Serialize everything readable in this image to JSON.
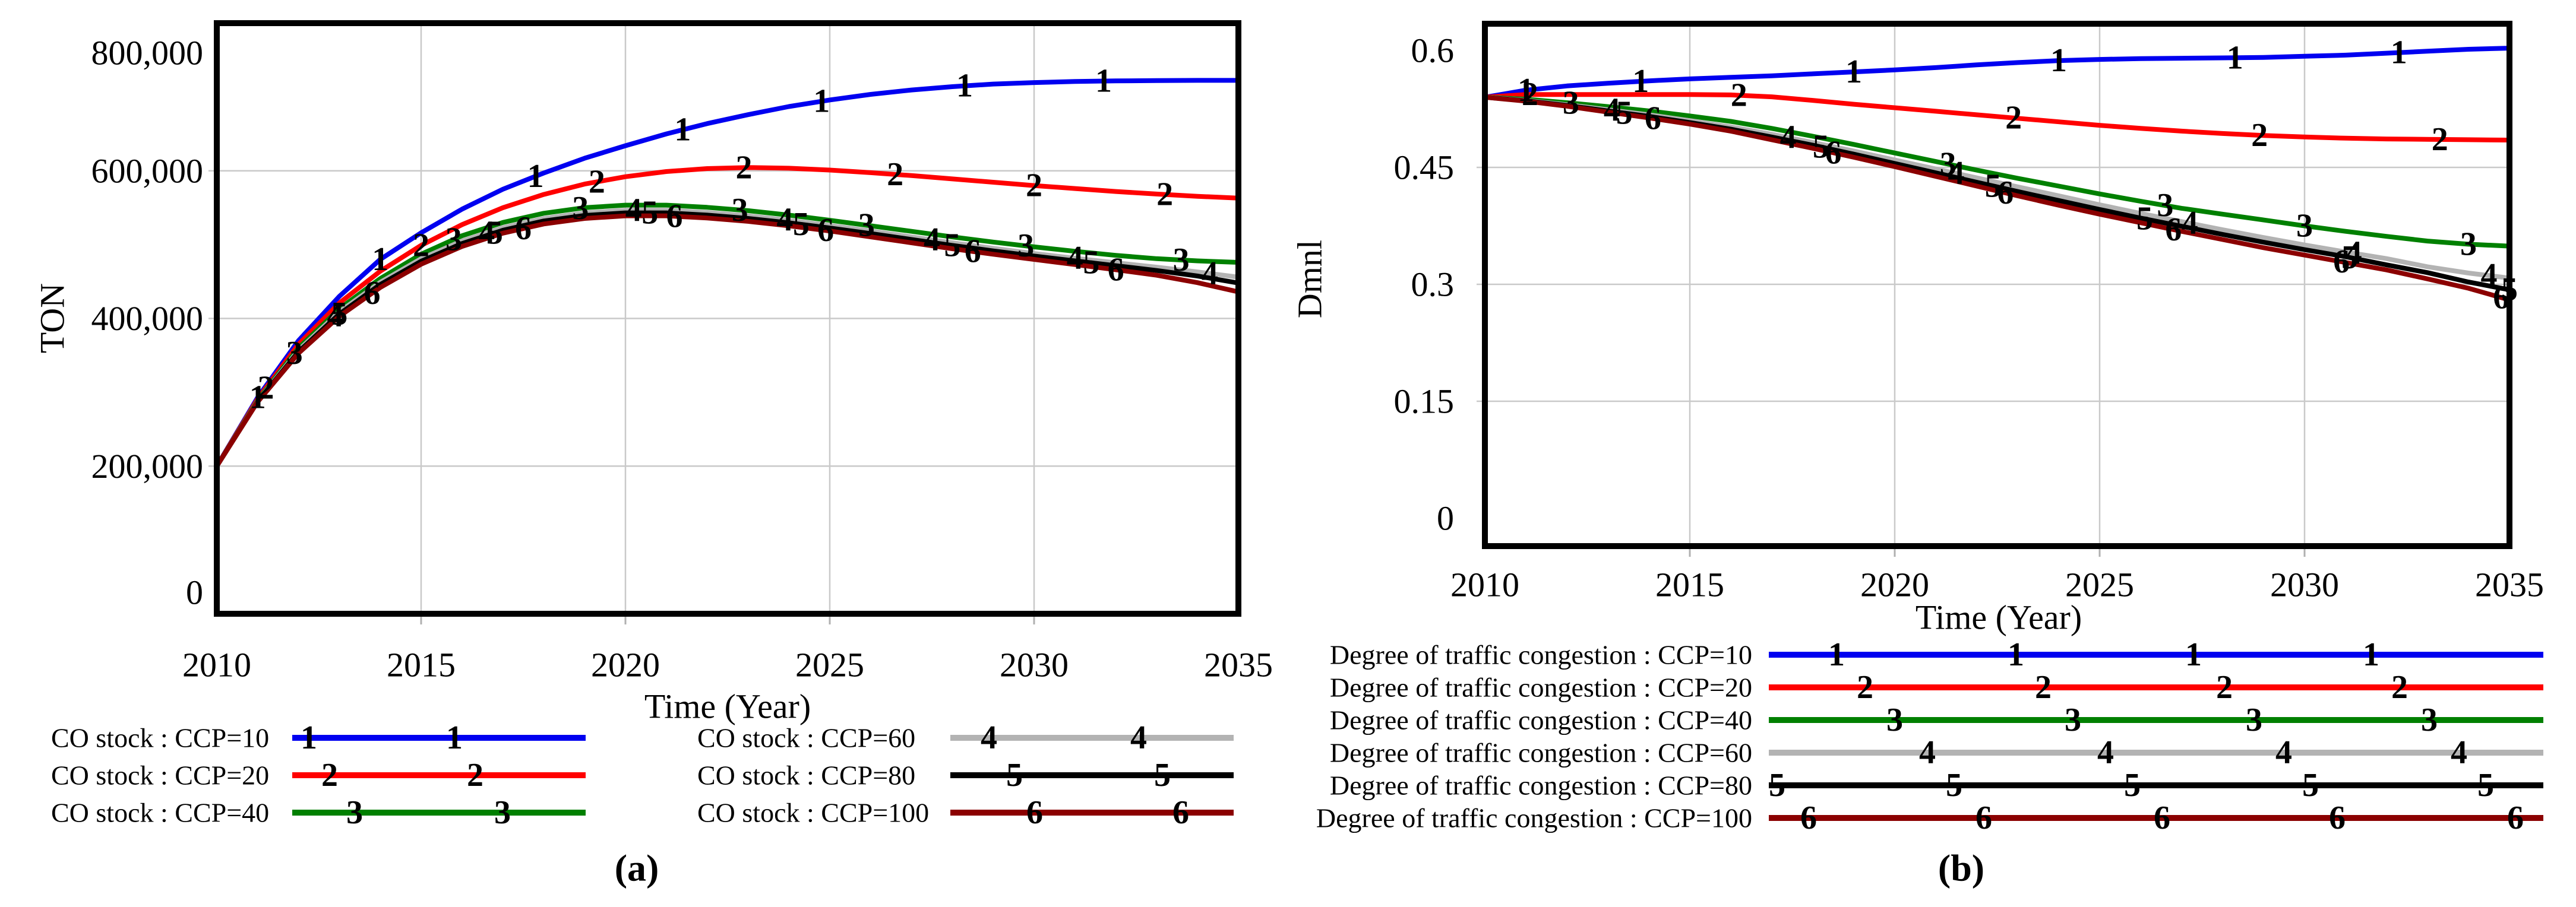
{
  "panels": {
    "a": {
      "caption": "(a)",
      "y_axis_title": "TON",
      "x_axis_title": "Time (Year)"
    },
    "b": {
      "caption": "(b)",
      "y_axis_title": "Dmnl",
      "x_axis_title": "Time (Year)"
    }
  },
  "colors": {
    "ccp10": "#0000f0",
    "ccp20": "#ff0000",
    "ccp40": "#008000",
    "ccp60": "#b3b3b3",
    "ccp80": "#000000",
    "ccp100": "#8b0000",
    "grid": "#c9c9c9",
    "axis": "#000000"
  },
  "chart_data": [
    {
      "id": "a",
      "type": "line",
      "title": "CO stock",
      "xlabel": "Time (Year)",
      "ylabel": "TON",
      "xlim": [
        2010,
        2035
      ],
      "ylim": [
        0,
        800000
      ],
      "x_ticks": [
        2010,
        2015,
        2020,
        2025,
        2030,
        2035
      ],
      "x_tick_labels": [
        "2010",
        "2015",
        "2020",
        "2025",
        "2030",
        "2035"
      ],
      "y_ticks": [
        0,
        200000,
        400000,
        600000,
        800000
      ],
      "y_tick_labels": [
        "0",
        "200,000",
        "400,000",
        "600,000",
        "800,000"
      ],
      "grid": true,
      "legend_position": "below",
      "x": [
        2010,
        2011,
        2012,
        2013,
        2014,
        2015,
        2016,
        2017,
        2018,
        2019,
        2020,
        2021,
        2022,
        2023,
        2024,
        2025,
        2026,
        2027,
        2028,
        2029,
        2030,
        2031,
        2032,
        2033,
        2034,
        2035
      ],
      "series": [
        {
          "name": "CO stock : CCP=10",
          "marker": "1",
          "color": "#0000f0",
          "values": [
            200000,
            293000,
            370000,
            430000,
            480000,
            516000,
            548000,
            575000,
            597000,
            617000,
            634000,
            650000,
            664000,
            676000,
            687000,
            696000,
            703500,
            709500,
            714000,
            717500,
            719500,
            721000,
            721800,
            722200,
            722500,
            722500
          ],
          "marker_years": [
            2011,
            2014,
            2017.8,
            2021.4,
            2024.8,
            2028.3,
            2031.7
          ]
        },
        {
          "name": "CO stock : CCP=20",
          "marker": "2",
          "color": "#ff0000",
          "values": [
            200000,
            291000,
            365000,
            421000,
            464000,
            499000,
            527000,
            550000,
            568000,
            582000,
            592000,
            599000,
            603000,
            604500,
            603500,
            601000,
            597500,
            593500,
            589000,
            584500,
            580000,
            576000,
            572000,
            568500,
            565500,
            563000
          ],
          "marker_years": [
            2011.2,
            2015,
            2019.3,
            2022.9,
            2026.6,
            2030,
            2033.2
          ]
        },
        {
          "name": "CO stock : CCP=40",
          "marker": "3",
          "color": "#008000",
          "values": [
            200000,
            289000,
            360000,
            413000,
            454000,
            487000,
            512000,
            530000,
            542500,
            550000,
            553500,
            553500,
            550500,
            546000,
            540000,
            533000,
            525500,
            518000,
            510500,
            503500,
            497000,
            491000,
            485500,
            481000,
            478000,
            476000
          ],
          "marker_years": [
            2011.9,
            2015.8,
            2018.9,
            2022.8,
            2025.9,
            2029.8,
            2033.6
          ]
        },
        {
          "name": "CO stock : CCP=60",
          "marker": "4",
          "color": "#b3b3b3",
          "values": [
            200000,
            288000,
            357000,
            409000,
            449000,
            481000,
            505000,
            523000,
            535500,
            543000,
            546500,
            546500,
            543500,
            539000,
            533000,
            526000,
            518500,
            510500,
            502500,
            495000,
            488000,
            481500,
            475500,
            469500,
            463000,
            456000
          ],
          "marker_years": [
            2012.9,
            2016.6,
            2020.2,
            2023.9,
            2027.5,
            2031,
            2034.3
          ]
        },
        {
          "name": "CO stock : CCP=80",
          "marker": "5",
          "color": "#000000",
          "values": [
            200000,
            287500,
            355000,
            406000,
            446000,
            477500,
            501500,
            519500,
            532000,
            539500,
            543000,
            543000,
            540000,
            535500,
            529500,
            522500,
            515000,
            507000,
            499000,
            491500,
            484500,
            478000,
            471500,
            465000,
            457500,
            448000
          ],
          "marker_years": [
            2013,
            2016.8,
            2020.6,
            2024.3,
            2028,
            2031.4
          ]
        },
        {
          "name": "CO stock : CCP=100",
          "marker": "6",
          "color": "#8b0000",
          "values": [
            200000,
            287000,
            353000,
            403000,
            442000,
            473500,
            497500,
            515500,
            528000,
            535500,
            539000,
            539000,
            536000,
            531500,
            525500,
            518500,
            510500,
            502500,
            494500,
            487000,
            480000,
            473000,
            466000,
            458500,
            448500,
            436000
          ],
          "marker_years": [
            2013.8,
            2017.5,
            2021.2,
            2024.9,
            2028.5,
            2032
          ]
        }
      ]
    },
    {
      "id": "b",
      "type": "line",
      "title": "Degree of traffic congestion",
      "xlabel": "Time (Year)",
      "ylabel": "Dmnl",
      "xlim": [
        2010,
        2035
      ],
      "ylim": [
        0,
        0.6
      ],
      "x_ticks": [
        2010,
        2015,
        2020,
        2025,
        2030,
        2035
      ],
      "x_tick_labels": [
        "2010",
        "2015",
        "2020",
        "2025",
        "2030",
        "2035"
      ],
      "y_ticks": [
        0,
        0.15,
        0.3,
        0.45,
        0.6
      ],
      "y_tick_labels": [
        "0",
        "0.15",
        "0.3",
        "0.45",
        "0.6"
      ],
      "grid": true,
      "legend_position": "below",
      "x": [
        2010,
        2011,
        2012,
        2013,
        2014,
        2015,
        2016,
        2017,
        2018,
        2019,
        2020,
        2021,
        2022,
        2023,
        2024,
        2025,
        2026,
        2027,
        2028,
        2029,
        2030,
        2031,
        2032,
        2033,
        2034,
        2035
      ],
      "series": [
        {
          "name": "Degree of traffic congestion : CCP=10",
          "marker": "1",
          "color": "#0000f0",
          "values": [
            0.54,
            0.549,
            0.5545,
            0.558,
            0.561,
            0.5635,
            0.5655,
            0.5675,
            0.57,
            0.5725,
            0.575,
            0.578,
            0.5815,
            0.5845,
            0.587,
            0.5885,
            0.5895,
            0.59,
            0.5905,
            0.591,
            0.5925,
            0.594,
            0.5965,
            0.599,
            0.6015,
            0.603
          ],
          "marker_years": [
            2011,
            2013.8,
            2019,
            2024,
            2028.3,
            2032.3
          ]
        },
        {
          "name": "Degree of traffic congestion : CCP=20",
          "marker": "2",
          "color": "#ff0000",
          "values": [
            0.54,
            0.5435,
            0.5435,
            0.5435,
            0.5435,
            0.5435,
            0.543,
            0.5405,
            0.536,
            0.531,
            0.5265,
            0.522,
            0.5175,
            0.513,
            0.5085,
            0.504,
            0.5,
            0.4965,
            0.4935,
            0.491,
            0.489,
            0.4875,
            0.4865,
            0.486,
            0.4855,
            0.485
          ],
          "marker_years": [
            2011.1,
            2016.2,
            2022.9,
            2028.9,
            2033.3
          ]
        },
        {
          "name": "Degree of traffic congestion : CCP=40",
          "marker": "3",
          "color": "#008000",
          "values": [
            0.54,
            0.5375,
            0.533,
            0.528,
            0.5225,
            0.516,
            0.509,
            0.5,
            0.49,
            0.4795,
            0.4685,
            0.4575,
            0.4465,
            0.436,
            0.426,
            0.416,
            0.4065,
            0.3975,
            0.39,
            0.3825,
            0.375,
            0.368,
            0.3615,
            0.3555,
            0.3515,
            0.349
          ],
          "marker_years": [
            2012.1,
            2021.3,
            2026.6,
            2030,
            2034
          ]
        },
        {
          "name": "Degree of traffic congestion : CCP=60",
          "marker": "4",
          "color": "#b3b3b3",
          "values": [
            0.54,
            0.536,
            0.5305,
            0.524,
            0.5175,
            0.51,
            0.502,
            0.4925,
            0.482,
            0.471,
            0.4595,
            0.448,
            0.4365,
            0.425,
            0.4135,
            0.402,
            0.391,
            0.3805,
            0.37,
            0.36,
            0.3505,
            0.3415,
            0.333,
            0.3225,
            0.3145,
            0.308
          ],
          "marker_years": [
            2013.1,
            2017.4,
            2021.5,
            2027.2,
            2031.2,
            2034.5
          ]
        },
        {
          "name": "Degree of traffic congestion : CCP=80",
          "marker": "5",
          "color": "#000000",
          "values": [
            0.54,
            0.5355,
            0.5295,
            0.5225,
            0.5155,
            0.5075,
            0.499,
            0.489,
            0.4785,
            0.467,
            0.455,
            0.443,
            0.431,
            0.419,
            0.4075,
            0.396,
            0.385,
            0.3745,
            0.364,
            0.354,
            0.3445,
            0.3355,
            0.325,
            0.315,
            0.303,
            0.293
          ],
          "marker_years": [
            2013.4,
            2018.2,
            2022.4,
            2026.1,
            2031.1,
            2035
          ]
        },
        {
          "name": "Degree of traffic congestion : CCP=100",
          "marker": "6",
          "color": "#8b0000",
          "values": [
            0.54,
            0.535,
            0.5285,
            0.521,
            0.5135,
            0.5055,
            0.4965,
            0.4855,
            0.4745,
            0.463,
            0.451,
            0.4385,
            0.426,
            0.4135,
            0.4015,
            0.39,
            0.379,
            0.368,
            0.3575,
            0.347,
            0.3375,
            0.328,
            0.3185,
            0.307,
            0.295,
            0.28
          ],
          "marker_years": [
            2014.1,
            2018.5,
            2022.7,
            2026.8,
            2030.9,
            2034.8
          ]
        }
      ]
    }
  ]
}
